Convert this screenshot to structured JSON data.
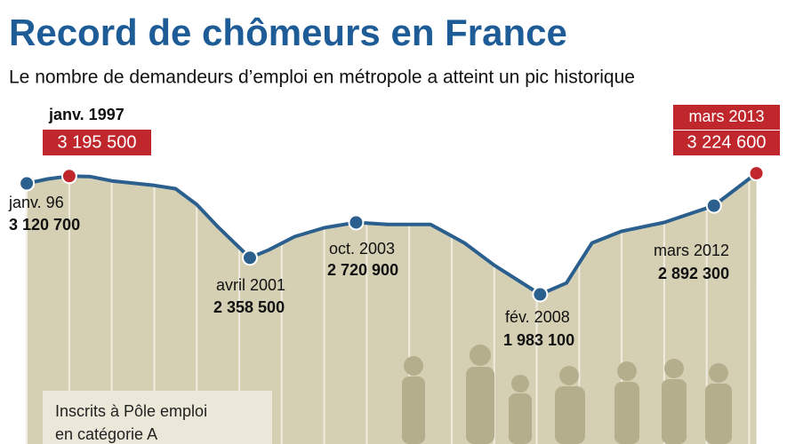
{
  "chart_data": {
    "type": "line",
    "title": "Record de chômeurs en France",
    "subtitle": "Le nombre de demandeurs d’emploi en métropole a atteint un pic historique",
    "note": [
      "Inscrits à Pôle emploi",
      "en catégorie A"
    ],
    "xlim": [
      1995.37,
      2013.89
    ],
    "ylim": [
      450000,
      5000000
    ],
    "area_color": "#d5d0b4",
    "series": [
      {
        "color": "#2a5f8e",
        "x": [
          1996,
          1996.5,
          1997,
          1997.5,
          1998,
          1999,
          1999.5,
          2000,
          2000.5,
          2001.25,
          2001.7,
          2002.3,
          2003,
          2003.75,
          2004.5,
          2005.5,
          2006.3,
          2007,
          2008.08,
          2008.7,
          2009.3,
          2010,
          2011,
          2012.17,
          2013.17
        ],
        "values": [
          3120700,
          3166000,
          3195500,
          3190000,
          3146000,
          3100000,
          3066000,
          2903000,
          2675000,
          2358500,
          2440000,
          2575000,
          2666000,
          2720900,
          2700000,
          2700000,
          2510000,
          2282000,
          1983100,
          2100000,
          2510000,
          2630000,
          2720000,
          2892300,
          3224600
        ]
      },
      {
        "x": [
          1996,
          1997,
          2001.25,
          2003.75,
          2008.08,
          2012.17,
          2013.17
        ],
        "values": [
          3120700,
          3195500,
          2358500,
          2720900,
          1983100,
          2892300,
          3224600
        ],
        "labels": [
          "janv. 96",
          "janv. 1997",
          "avril 2001",
          "oct. 2003",
          "fév. 2008",
          "mars 2012",
          "mars 2013"
        ],
        "value_labels": [
          "3 120 700",
          "3 195 500",
          "2 358 500",
          "2 720 900",
          "1 983 100",
          "2 892 300",
          "3 224 600"
        ],
        "colors": [
          "#2a5f8e",
          "#c0272d",
          "#2a5f8e",
          "#2a5f8e",
          "#2a5f8e",
          "#2a5f8e",
          "#c0272d"
        ]
      }
    ]
  }
}
